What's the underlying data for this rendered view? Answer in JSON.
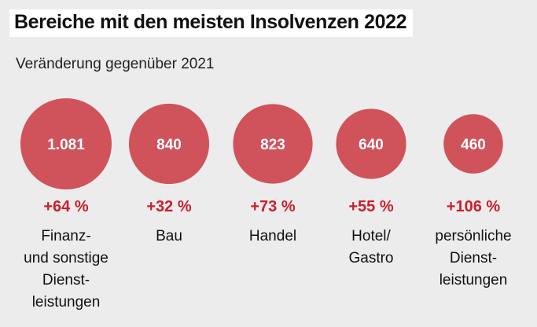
{
  "title": "Bereiche mit den meisten Insolvenzen 2022",
  "subtitle": "Veränderung gegenüber 2021",
  "colors": {
    "bubble": "#d0535c",
    "change": "#c8202e",
    "background": "#ececec"
  },
  "chart_data": {
    "type": "bubble",
    "title": "Bereiche mit den meisten Insolvenzen 2022",
    "subtitle": "Veränderung gegenüber 2021",
    "categories": [
      [
        "Finanz-",
        "und sonstige",
        "Dienst-",
        "leistungen"
      ],
      [
        "Bau"
      ],
      [
        "Handel"
      ],
      [
        "Hotel/",
        "Gastro"
      ],
      [
        "persönliche",
        "Dienst-",
        "leistungen"
      ]
    ],
    "values": [
      1081,
      840,
      823,
      640,
      460
    ],
    "value_labels": [
      "1.081",
      "840",
      "823",
      "640",
      "460"
    ],
    "changes": [
      "+64 %",
      "+32 %",
      "+73 %",
      "+55 %",
      "+106 %"
    ]
  }
}
